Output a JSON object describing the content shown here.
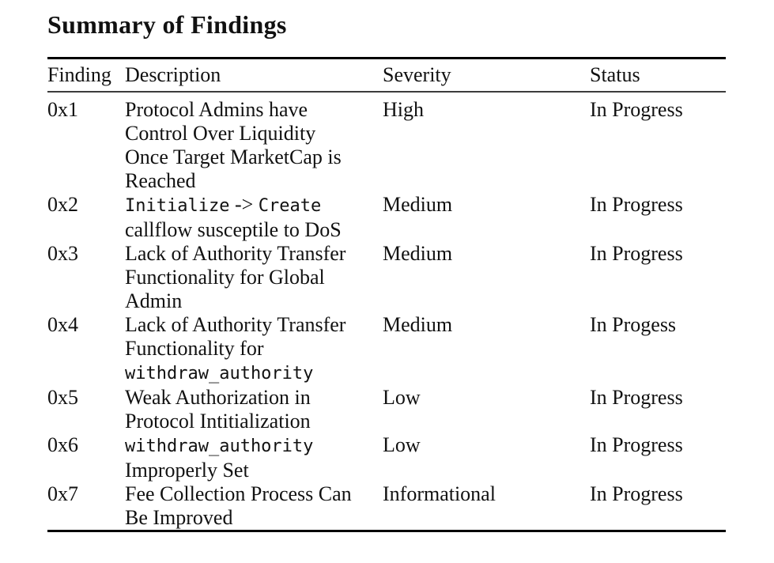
{
  "page_title": "Summary of Findings",
  "table": {
    "columns": [
      "Finding",
      "Description",
      "Severity",
      "Status"
    ],
    "rows": [
      {
        "finding": "0x1",
        "description_lines": [
          [
            {
              "t": "Protocol Admins have",
              "mono": false
            }
          ],
          [
            {
              "t": "Control Over Liquidity",
              "mono": false
            }
          ],
          [
            {
              "t": "Once Target MarketCap is",
              "mono": false
            }
          ],
          [
            {
              "t": "Reached",
              "mono": false
            }
          ]
        ],
        "severity": "High",
        "status": "In Progress"
      },
      {
        "finding": "0x2",
        "description_lines": [
          [
            {
              "t": "Initialize",
              "mono": true
            },
            {
              "t": " -> ",
              "mono": false
            },
            {
              "t": "Create",
              "mono": true
            }
          ],
          [
            {
              "t": "callflow susceptile to DoS",
              "mono": false
            }
          ]
        ],
        "severity": "Medium",
        "status": "In Progress"
      },
      {
        "finding": "0x3",
        "description_lines": [
          [
            {
              "t": "Lack of Authority Transfer",
              "mono": false
            }
          ],
          [
            {
              "t": "Functionality for Global",
              "mono": false
            }
          ],
          [
            {
              "t": "Admin",
              "mono": false
            }
          ]
        ],
        "severity": "Medium",
        "status": "In Progress"
      },
      {
        "finding": "0x4",
        "description_lines": [
          [
            {
              "t": "Lack of Authority Transfer",
              "mono": false
            }
          ],
          [
            {
              "t": "Functionality for",
              "mono": false
            }
          ],
          [
            {
              "t": "withdraw_authority",
              "mono": true
            }
          ]
        ],
        "severity": "Medium",
        "status": "In Progess"
      },
      {
        "finding": "0x5",
        "description_lines": [
          [
            {
              "t": "Weak Authorization in",
              "mono": false
            }
          ],
          [
            {
              "t": "Protocol Intitialization",
              "mono": false
            }
          ]
        ],
        "severity": "Low",
        "status": "In Progress"
      },
      {
        "finding": "0x6",
        "description_lines": [
          [
            {
              "t": "withdraw_authority",
              "mono": true
            }
          ],
          [
            {
              "t": "Improperly Set",
              "mono": false
            }
          ]
        ],
        "severity": "Low",
        "status": "In Progress"
      },
      {
        "finding": "0x7",
        "description_lines": [
          [
            {
              "t": "Fee Collection Process Can",
              "mono": false
            }
          ],
          [
            {
              "t": "Be Improved",
              "mono": false
            }
          ]
        ],
        "severity": "Informational",
        "status": "In Progress"
      }
    ]
  },
  "colors": {
    "text": "#111111",
    "background": "#ffffff",
    "rule_heavy": "#000000",
    "rule_light": "#3c3c3c"
  }
}
